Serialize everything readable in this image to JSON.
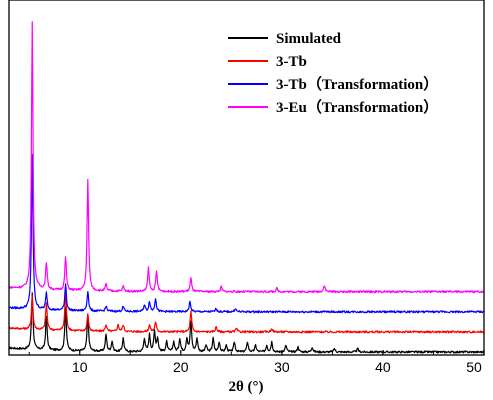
{
  "chart_data": {
    "type": "line",
    "title": "",
    "xlabel": "2θ (°)",
    "ylabel": "",
    "xlim": [
      3,
      50
    ],
    "ylim": [
      0,
      100
    ],
    "x_ticks": [
      10,
      20,
      30,
      40,
      50
    ],
    "grid": false,
    "legend_position": "top-right",
    "series": [
      {
        "name": "Simulated",
        "color": "#000000",
        "baseline": 0,
        "peaks": [
          [
            5.3,
            17
          ],
          [
            6.7,
            10
          ],
          [
            8.6,
            13
          ],
          [
            10.8,
            11
          ],
          [
            12.6,
            5
          ],
          [
            13.2,
            3
          ],
          [
            14.3,
            4
          ],
          [
            16.4,
            4
          ],
          [
            16.9,
            5
          ],
          [
            17.4,
            6
          ],
          [
            17.7,
            4
          ],
          [
            18.6,
            3
          ],
          [
            19.3,
            3
          ],
          [
            19.9,
            4
          ],
          [
            20.6,
            4
          ],
          [
            21.0,
            9
          ],
          [
            21.6,
            4
          ],
          [
            22.5,
            2
          ],
          [
            23.2,
            4
          ],
          [
            23.8,
            3
          ],
          [
            24.5,
            2
          ],
          [
            25.3,
            3
          ],
          [
            26.6,
            3
          ],
          [
            27.4,
            2
          ],
          [
            28.5,
            2
          ],
          [
            29.0,
            3
          ],
          [
            30.4,
            2
          ],
          [
            31.6,
            1.5
          ],
          [
            33.0,
            1.5
          ],
          [
            35.2,
            1
          ],
          [
            37.5,
            1
          ]
        ]
      },
      {
        "name": "3-Tb",
        "color": "#ff0000",
        "baseline": 6,
        "peaks": [
          [
            5.3,
            10
          ],
          [
            6.7,
            8
          ],
          [
            8.6,
            12
          ],
          [
            10.8,
            5
          ],
          [
            12.6,
            2
          ],
          [
            13.8,
            2
          ],
          [
            14.3,
            2
          ],
          [
            16.9,
            2
          ],
          [
            17.5,
            3
          ],
          [
            21.0,
            6
          ],
          [
            23.5,
            1.5
          ],
          [
            25.5,
            1
          ],
          [
            29.0,
            1
          ]
        ]
      },
      {
        "name": "3-Tb（Transformation）",
        "color": "#0000ff",
        "baseline": 12,
        "peaks": [
          [
            5.3,
            46
          ],
          [
            6.7,
            5
          ],
          [
            8.6,
            8
          ],
          [
            10.8,
            6
          ],
          [
            12.6,
            1.5
          ],
          [
            14.3,
            1.5
          ],
          [
            16.4,
            2
          ],
          [
            16.9,
            3
          ],
          [
            17.5,
            4
          ],
          [
            20.9,
            3
          ],
          [
            23.5,
            1
          ],
          [
            25.4,
            1
          ]
        ]
      },
      {
        "name": "3-Eu（Transformation）",
        "color": "#ff00ff",
        "baseline": 18,
        "peaks": [
          [
            5.3,
            80
          ],
          [
            6.7,
            8
          ],
          [
            8.6,
            10
          ],
          [
            10.8,
            33
          ],
          [
            12.6,
            2
          ],
          [
            14.3,
            1.5
          ],
          [
            16.8,
            7
          ],
          [
            17.6,
            6
          ],
          [
            21.0,
            4
          ],
          [
            24.0,
            1.5
          ],
          [
            29.5,
            1
          ],
          [
            34.2,
            2
          ]
        ]
      }
    ]
  }
}
